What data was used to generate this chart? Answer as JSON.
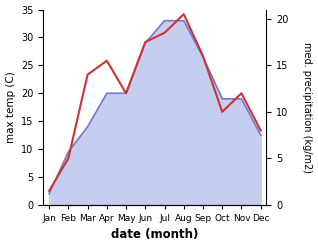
{
  "months": [
    "Jan",
    "Feb",
    "Mar",
    "Apr",
    "May",
    "Jun",
    "Jul",
    "Aug",
    "Sep",
    "Oct",
    "Nov",
    "Dec"
  ],
  "month_indices": [
    0,
    1,
    2,
    3,
    4,
    5,
    6,
    7,
    8,
    9,
    10,
    11
  ],
  "temp": [
    2.0,
    9.5,
    14.0,
    20.0,
    20.0,
    29.0,
    33.0,
    33.0,
    26.5,
    19.0,
    19.0,
    12.5
  ],
  "precip": [
    1.5,
    5.0,
    14.0,
    15.5,
    12.0,
    17.5,
    18.5,
    20.5,
    16.0,
    10.0,
    12.0,
    8.0
  ],
  "temp_color": "#7777cc",
  "temp_fill_color": "#c5cef0",
  "precip_color": "#cc3333",
  "temp_ylim": [
    0,
    35
  ],
  "precip_ylim": [
    0,
    21
  ],
  "temp_yticks": [
    0,
    5,
    10,
    15,
    20,
    25,
    30,
    35
  ],
  "precip_yticks": [
    0,
    5,
    10,
    15,
    20
  ],
  "xlabel": "date (month)",
  "ylabel_left": "max temp (C)",
  "ylabel_right": "med. precipitation (kg/m2)",
  "bg_color": "#ffffff"
}
